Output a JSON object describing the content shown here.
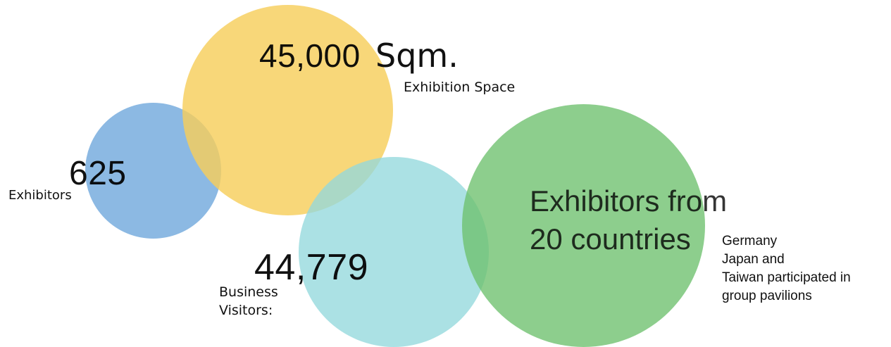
{
  "colors": {
    "blue": "#6fa8dc",
    "yellow": "#f6ce5b",
    "teal": "#93d8dc",
    "green": "#6dc06d",
    "text_dark": "#111111",
    "olive_text": "#8a6c0c",
    "navy_text": "#1f4e79",
    "teal_text": "#3f7a7e",
    "green_text": "#2e7d32"
  },
  "exhibitors": {
    "number": "625",
    "label": "Exhibitors"
  },
  "space": {
    "number": "45,000",
    "unit": "Sqm.",
    "label": "Exhibition Space"
  },
  "visitors": {
    "number": "44,779",
    "label_line1": "Business",
    "label_line2": "Visitors:"
  },
  "countries": {
    "headline_line1": "Exhibitors from",
    "headline_line2": "20 countries",
    "note_lines": [
      "Germany",
      "Japan and",
      "Taiwan participated in",
      "group pavilions"
    ]
  }
}
